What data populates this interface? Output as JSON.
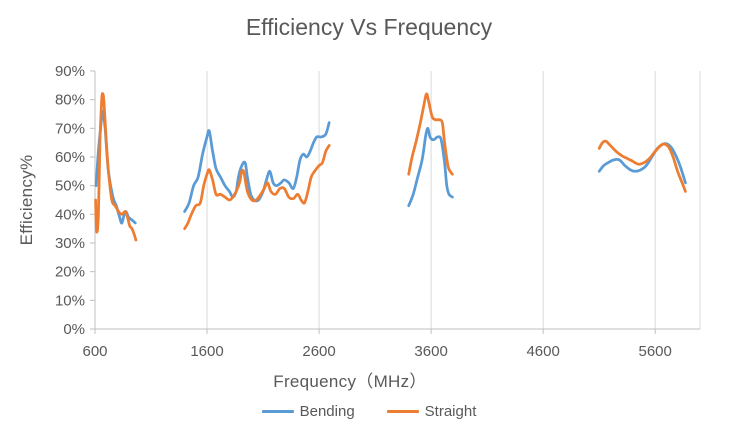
{
  "chart_data": {
    "type": "line",
    "title": "Efficiency Vs Frequency",
    "xlabel": "Frequency（MHz）",
    "ylabel": "Efficiency%",
    "xlim": [
      600,
      6000
    ],
    "ylim": [
      0,
      0.9
    ],
    "x_ticks": [
      600,
      1600,
      2600,
      3600,
      4600,
      5600
    ],
    "x_tick_labels": [
      "600",
      "1600",
      "2600",
      "3600",
      "4600",
      "5600"
    ],
    "y_ticks": [
      0,
      0.1,
      0.2,
      0.3,
      0.4,
      0.5,
      0.6,
      0.7,
      0.8,
      0.9
    ],
    "y_tick_labels": [
      "0%",
      "10%",
      "20%",
      "30%",
      "40%",
      "50%",
      "60%",
      "70%",
      "80%",
      "90%"
    ],
    "grid": "vertical",
    "legend": "bottom",
    "series": [
      {
        "name": "Bending",
        "color": "#5b9bd5",
        "segments": [
          [
            [
              610,
              0.5
            ],
            [
              630,
              0.62
            ],
            [
              650,
              0.7
            ],
            [
              670,
              0.76
            ],
            [
              690,
              0.7
            ],
            [
              720,
              0.55
            ],
            [
              760,
              0.46
            ],
            [
              790,
              0.43
            ],
            [
              820,
              0.39
            ],
            [
              840,
              0.37
            ],
            [
              870,
              0.41
            ],
            [
              900,
              0.39
            ],
            [
              930,
              0.38
            ],
            [
              960,
              0.37
            ]
          ],
          [
            [
              1400,
              0.41
            ],
            [
              1440,
              0.44
            ],
            [
              1480,
              0.5
            ],
            [
              1520,
              0.53
            ],
            [
              1560,
              0.61
            ],
            [
              1600,
              0.67
            ],
            [
              1620,
              0.69
            ],
            [
              1650,
              0.62
            ],
            [
              1680,
              0.56
            ],
            [
              1720,
              0.53
            ],
            [
              1760,
              0.5
            ],
            [
              1800,
              0.48
            ],
            [
              1830,
              0.46
            ],
            [
              1860,
              0.48
            ],
            [
              1880,
              0.53
            ],
            [
              1910,
              0.57
            ],
            [
              1940,
              0.58
            ],
            [
              1960,
              0.53
            ],
            [
              1990,
              0.47
            ],
            [
              2020,
              0.45
            ],
            [
              2060,
              0.45
            ],
            [
              2100,
              0.48
            ],
            [
              2130,
              0.52
            ],
            [
              2160,
              0.55
            ],
            [
              2190,
              0.51
            ],
            [
              2220,
              0.5
            ],
            [
              2260,
              0.51
            ],
            [
              2290,
              0.52
            ],
            [
              2330,
              0.51
            ],
            [
              2370,
              0.49
            ],
            [
              2400,
              0.53
            ],
            [
              2430,
              0.59
            ],
            [
              2460,
              0.61
            ],
            [
              2490,
              0.6
            ],
            [
              2520,
              0.62
            ],
            [
              2550,
              0.65
            ],
            [
              2580,
              0.67
            ],
            [
              2620,
              0.67
            ],
            [
              2660,
              0.68
            ],
            [
              2690,
              0.72
            ]
          ],
          [
            [
              3400,
              0.43
            ],
            [
              3440,
              0.47
            ],
            [
              3480,
              0.53
            ],
            [
              3520,
              0.59
            ],
            [
              3550,
              0.67
            ],
            [
              3570,
              0.7
            ],
            [
              3590,
              0.67
            ],
            [
              3620,
              0.66
            ],
            [
              3660,
              0.67
            ],
            [
              3690,
              0.66
            ],
            [
              3720,
              0.58
            ],
            [
              3740,
              0.5
            ],
            [
              3760,
              0.47
            ],
            [
              3790,
              0.46
            ]
          ],
          [
            [
              5100,
              0.55
            ],
            [
              5140,
              0.57
            ],
            [
              5180,
              0.58
            ],
            [
              5230,
              0.59
            ],
            [
              5280,
              0.59
            ],
            [
              5330,
              0.57
            ],
            [
              5380,
              0.555
            ],
            [
              5420,
              0.55
            ],
            [
              5470,
              0.555
            ],
            [
              5520,
              0.57
            ],
            [
              5570,
              0.6
            ],
            [
              5620,
              0.63
            ],
            [
              5670,
              0.645
            ],
            [
              5710,
              0.645
            ],
            [
              5750,
              0.63
            ],
            [
              5790,
              0.6
            ],
            [
              5830,
              0.56
            ],
            [
              5870,
              0.51
            ]
          ]
        ]
      },
      {
        "name": "Straight",
        "color": "#ed7d31",
        "segments": [
          [
            [
              605,
              0.45
            ],
            [
              615,
              0.34
            ],
            [
              630,
              0.4
            ],
            [
              645,
              0.66
            ],
            [
              660,
              0.8
            ],
            [
              670,
              0.82
            ],
            [
              680,
              0.79
            ],
            [
              700,
              0.66
            ],
            [
              720,
              0.55
            ],
            [
              750,
              0.45
            ],
            [
              780,
              0.43
            ],
            [
              810,
              0.41
            ],
            [
              840,
              0.4
            ],
            [
              870,
              0.41
            ],
            [
              890,
              0.39
            ],
            [
              910,
              0.36
            ],
            [
              930,
              0.35
            ],
            [
              950,
              0.33
            ],
            [
              965,
              0.31
            ]
          ],
          [
            [
              1400,
              0.35
            ],
            [
              1430,
              0.37
            ],
            [
              1460,
              0.4
            ],
            [
              1500,
              0.43
            ],
            [
              1540,
              0.44
            ],
            [
              1570,
              0.5
            ],
            [
              1600,
              0.54
            ],
            [
              1620,
              0.555
            ],
            [
              1650,
              0.52
            ],
            [
              1680,
              0.47
            ],
            [
              1720,
              0.47
            ],
            [
              1760,
              0.46
            ],
            [
              1800,
              0.45
            ],
            [
              1830,
              0.46
            ],
            [
              1860,
              0.48
            ],
            [
              1890,
              0.51
            ],
            [
              1910,
              0.55
            ],
            [
              1930,
              0.545
            ],
            [
              1960,
              0.48
            ],
            [
              2000,
              0.45
            ],
            [
              2040,
              0.45
            ],
            [
              2080,
              0.47
            ],
            [
              2110,
              0.49
            ],
            [
              2140,
              0.51
            ],
            [
              2170,
              0.48
            ],
            [
              2210,
              0.47
            ],
            [
              2250,
              0.49
            ],
            [
              2290,
              0.49
            ],
            [
              2330,
              0.46
            ],
            [
              2370,
              0.455
            ],
            [
              2410,
              0.47
            ],
            [
              2440,
              0.45
            ],
            [
              2470,
              0.44
            ],
            [
              2500,
              0.48
            ],
            [
              2530,
              0.53
            ],
            [
              2560,
              0.55
            ],
            [
              2600,
              0.57
            ],
            [
              2630,
              0.58
            ],
            [
              2660,
              0.62
            ],
            [
              2690,
              0.64
            ]
          ],
          [
            [
              3400,
              0.54
            ],
            [
              3430,
              0.6
            ],
            [
              3470,
              0.66
            ],
            [
              3510,
              0.73
            ],
            [
              3540,
              0.79
            ],
            [
              3560,
              0.82
            ],
            [
              3580,
              0.79
            ],
            [
              3610,
              0.74
            ],
            [
              3640,
              0.73
            ],
            [
              3670,
              0.73
            ],
            [
              3700,
              0.72
            ],
            [
              3720,
              0.65
            ],
            [
              3750,
              0.57
            ],
            [
              3770,
              0.55
            ],
            [
              3790,
              0.54
            ]
          ],
          [
            [
              5100,
              0.63
            ],
            [
              5130,
              0.65
            ],
            [
              5160,
              0.655
            ],
            [
              5200,
              0.64
            ],
            [
              5250,
              0.62
            ],
            [
              5300,
              0.605
            ],
            [
              5350,
              0.595
            ],
            [
              5400,
              0.585
            ],
            [
              5450,
              0.575
            ],
            [
              5500,
              0.58
            ],
            [
              5550,
              0.595
            ],
            [
              5600,
              0.62
            ],
            [
              5650,
              0.64
            ],
            [
              5680,
              0.645
            ],
            [
              5720,
              0.635
            ],
            [
              5760,
              0.6
            ],
            [
              5800,
              0.55
            ],
            [
              5840,
              0.51
            ],
            [
              5870,
              0.48
            ]
          ]
        ]
      }
    ]
  }
}
